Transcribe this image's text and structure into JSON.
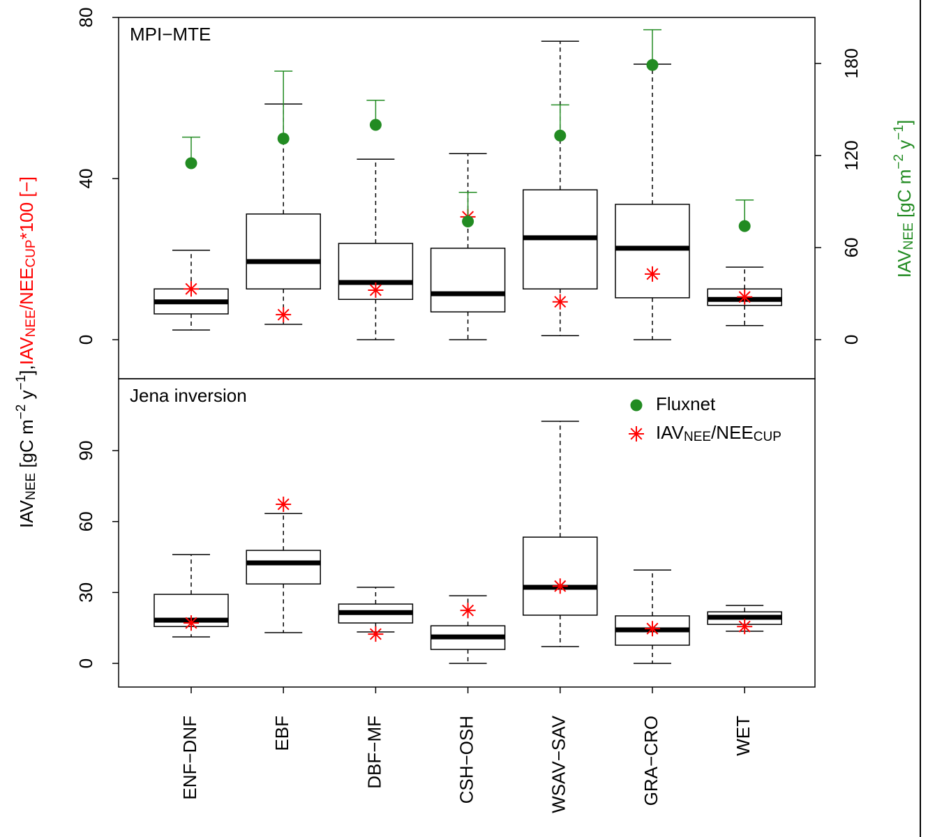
{
  "chart_data": [
    {
      "type": "boxplot",
      "title": "MPI−MTE",
      "ylabel": [
        {
          "text": "IAV"
        },
        {
          "text": "NEE",
          "style": "sub"
        },
        {
          "text": " [gC m"
        },
        {
          "text": "−2",
          "style": "sup"
        },
        {
          "text": " y"
        },
        {
          "text": "−1",
          "style": "sup"
        },
        {
          "text": "],"
        },
        {
          "text": "IAV",
          "color": "#ff0000"
        },
        {
          "text": "NEE",
          "style": "sub",
          "color": "#ff0000"
        },
        {
          "text": "/NEE",
          "color": "#ff0000"
        },
        {
          "text": "CUP",
          "style": "sub",
          "color": "#ff0000"
        },
        {
          "text": "*100 [−]",
          "color": "#ff0000"
        }
      ],
      "y2label": [
        {
          "text": "IAV"
        },
        {
          "text": "NEE",
          "style": "sub"
        },
        {
          "text": " [gC m"
        },
        {
          "text": "−2",
          "style": "sup"
        },
        {
          "text": " y"
        },
        {
          "text": "−1",
          "style": "sup"
        },
        {
          "text": "]"
        }
      ],
      "y2label_color": "#228b22",
      "ylim": [
        -9.7,
        80
      ],
      "yticks": [
        0,
        40,
        80
      ],
      "y2lim": [
        -25.5,
        210
      ],
      "y2ticks": [
        0,
        60,
        120,
        180
      ],
      "whisker_low": [
        2.4,
        3.8,
        0,
        0,
        1,
        0,
        3.5
      ],
      "q1": [
        6.4,
        12.6,
        10,
        6.9,
        12.6,
        10.4,
        8.5
      ],
      "median": [
        9.4,
        19.4,
        14.2,
        11.4,
        25.3,
        22.7,
        10
      ],
      "q3": [
        12.6,
        31.2,
        23.9,
        22.7,
        37.2,
        33.6,
        12.6
      ],
      "whisker_high": [
        22.2,
        58.5,
        44.8,
        46.2,
        74.1,
        68.4,
        18
      ],
      "series": [
        {
          "name": [
            {
              "text": "IAV"
            },
            {
              "text": "NEE",
              "style": "sub"
            },
            {
              "text": "/NEE"
            },
            {
              "text": "CUP",
              "style": "sub"
            }
          ],
          "color": "#ff0000",
          "marker": "star",
          "values": [
            12.6,
            6.2,
            12.3,
            30.5,
            9.4,
            16.3,
            10.6
          ]
        },
        {
          "name": [
            {
              "text": "Fluxnet"
            }
          ],
          "color": "#228b22",
          "marker": "circle",
          "axis": "y2",
          "values": [
            115,
            131,
            140,
            77,
            133,
            179,
            74
          ],
          "upper": [
            132,
            175,
            156,
            96,
            153,
            202,
            91
          ]
        }
      ]
    },
    {
      "type": "boxplot",
      "title": "Jena inversion",
      "categories": [
        "ENF−DNF",
        "EBF",
        "DBF−MF",
        "CSH−OSH",
        "WSAV−SAV",
        "GRA−CRO",
        "WET"
      ],
      "ylim": [
        -10,
        120.4
      ],
      "yticks": [
        0,
        30,
        60,
        90
      ],
      "whisker_low": [
        11.2,
        13,
        13.3,
        0,
        7.1,
        0,
        13.6
      ],
      "q1": [
        15.6,
        33.6,
        17.1,
        5.9,
        20.4,
        7.7,
        16.5
      ],
      "median": [
        18.3,
        42.5,
        21.5,
        11.2,
        32.2,
        14.2,
        19.5
      ],
      "q3": [
        29.2,
        47.8,
        25.1,
        15.9,
        53.4,
        20.1,
        21.8
      ],
      "whisker_high": [
        46,
        63.4,
        32.2,
        28.6,
        102.4,
        39.5,
        24.5
      ],
      "series": [
        {
          "color": "#ff0000",
          "marker": "star",
          "values": [
            17.1,
            67.3,
            12.4,
            22.4,
            32.7,
            14.7,
            15.6
          ]
        }
      ],
      "legend": "topright"
    }
  ]
}
